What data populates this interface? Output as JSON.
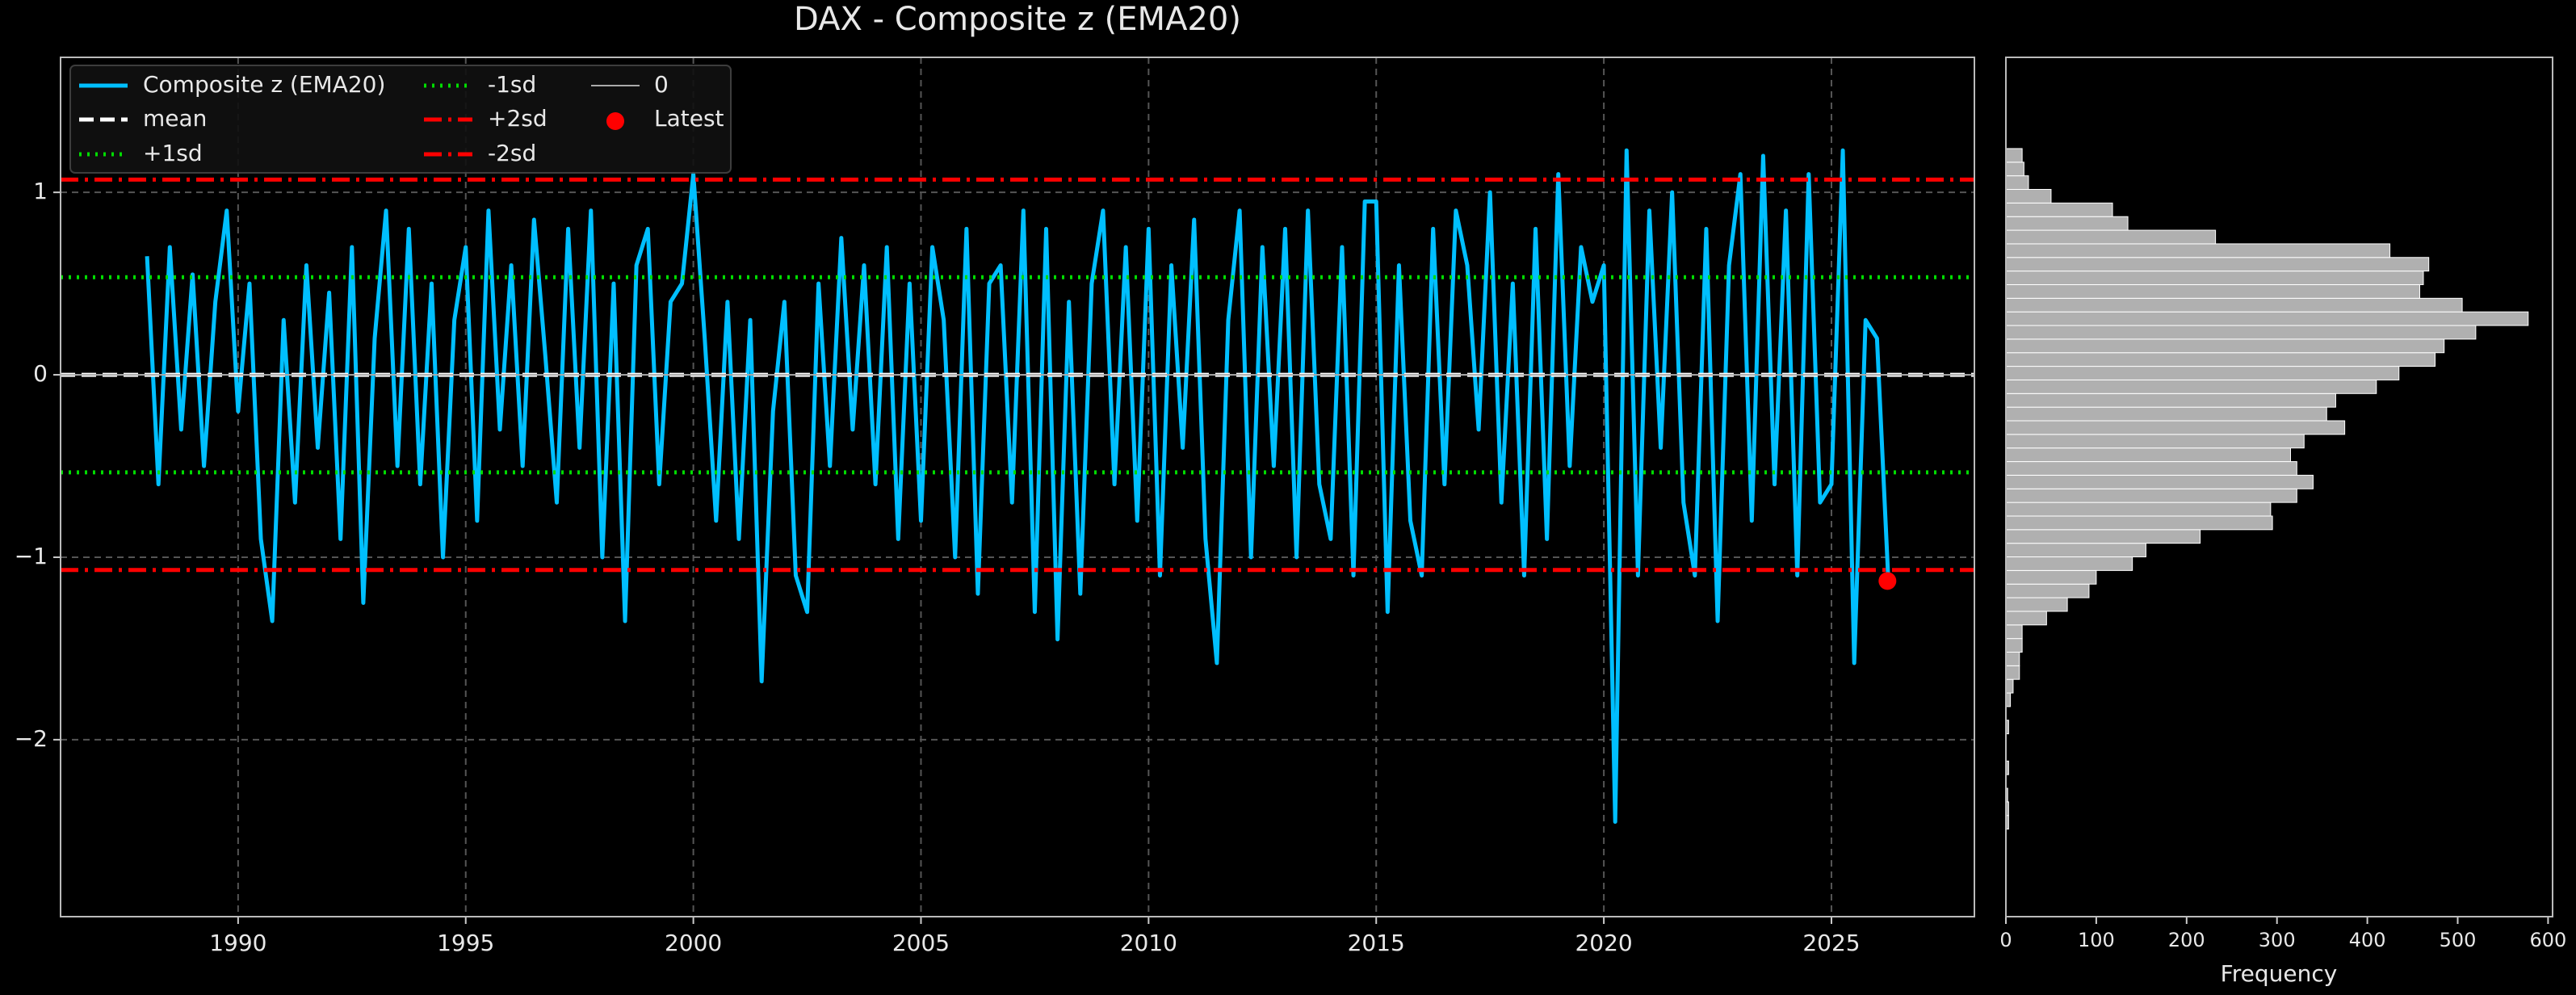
{
  "chart_data": [
    {
      "type": "line",
      "title": "DAX - Composite z (EMA20)",
      "xlim": [
        1986.1,
        2028.14
      ],
      "xticks": [
        1990,
        1995,
        2000,
        2005,
        2010,
        2015,
        2020,
        2025
      ],
      "ylim": [
        -2.97,
        1.74
      ],
      "yticks": [
        {
          "value": -2,
          "label": "−2"
        },
        {
          "value": -1,
          "label": "−1"
        },
        0,
        1
      ],
      "grid": true,
      "legend": "upper left",
      "series": [
        {
          "name": "Composite z (EMA20)",
          "color": "#00bfff",
          "x": [
            1988,
            1988.25,
            1988.5,
            1988.75,
            1989,
            1989.25,
            1989.5,
            1989.75,
            1990,
            1990.25,
            1990.5,
            1990.75,
            1991,
            1991.25,
            1991.5,
            1991.75,
            1992,
            1992.25,
            1992.5,
            1992.75,
            1993,
            1993.25,
            1993.5,
            1993.75,
            1994,
            1994.25,
            1994.5,
            1994.75,
            1995,
            1995.25,
            1995.5,
            1995.75,
            1996,
            1996.25,
            1996.5,
            1996.75,
            1997,
            1997.25,
            1997.5,
            1997.75,
            1998,
            1998.25,
            1998.5,
            1998.75,
            1999,
            1999.25,
            1999.5,
            1999.75,
            2000,
            2000.25,
            2000.5,
            2000.75,
            2001,
            2001.25,
            2001.5,
            2001.75,
            2002,
            2002.25,
            2002.5,
            2002.75,
            2003,
            2003.25,
            2003.5,
            2003.75,
            2004,
            2004.25,
            2004.5,
            2004.75,
            2005,
            2005.25,
            2005.5,
            2005.75,
            2006,
            2006.25,
            2006.5,
            2006.75,
            2007,
            2007.25,
            2007.5,
            2007.75,
            2008,
            2008.25,
            2008.5,
            2008.75,
            2009,
            2009.25,
            2009.5,
            2009.75,
            2010,
            2010.25,
            2010.5,
            2010.75,
            2011,
            2011.25,
            2011.5,
            2011.75,
            2012,
            2012.25,
            2012.5,
            2012.75,
            2013,
            2013.25,
            2013.5,
            2013.75,
            2014,
            2014.25,
            2014.5,
            2014.75,
            2015,
            2015.25,
            2015.5,
            2015.75,
            2016,
            2016.25,
            2016.5,
            2016.75,
            2017,
            2017.25,
            2017.5,
            2017.75,
            2018,
            2018.25,
            2018.5,
            2018.75,
            2019,
            2019.25,
            2019.5,
            2019.75,
            2020,
            2020.25,
            2020.5,
            2020.75,
            2021,
            2021.25,
            2021.5,
            2021.75,
            2022,
            2022.25,
            2022.5,
            2022.75,
            2023,
            2023.25,
            2023.5,
            2023.75,
            2024,
            2024.25,
            2024.5,
            2024.75,
            2025,
            2025.25,
            2025.5,
            2025.75,
            2026,
            2026.25
          ],
          "values": [
            0.65,
            -0.6,
            0.7,
            -0.3,
            0.55,
            -0.5,
            0.4,
            0.9,
            -0.2,
            0.5,
            -0.9,
            -1.35,
            0.3,
            -0.7,
            0.6,
            -0.4,
            0.45,
            -0.9,
            0.7,
            -1.25,
            0.2,
            0.9,
            -0.5,
            0.8,
            -0.6,
            0.5,
            -1.0,
            0.3,
            0.7,
            -0.8,
            0.9,
            -0.3,
            0.6,
            -0.5,
            0.85,
            0.1,
            -0.7,
            0.8,
            -0.4,
            0.9,
            -1.0,
            0.5,
            -1.35,
            0.6,
            0.8,
            -0.6,
            0.4,
            0.5,
            1.1,
            0.2,
            -0.8,
            0.4,
            -0.9,
            0.3,
            -1.68,
            -0.2,
            0.4,
            -1.1,
            -1.3,
            0.5,
            -0.5,
            0.75,
            -0.3,
            0.6,
            -0.6,
            0.7,
            -0.9,
            0.5,
            -0.8,
            0.7,
            0.3,
            -1.0,
            0.8,
            -1.2,
            0.5,
            0.6,
            -0.7,
            0.9,
            -1.3,
            0.8,
            -1.45,
            0.4,
            -1.2,
            0.5,
            0.9,
            -0.6,
            0.7,
            -0.8,
            0.8,
            -1.1,
            0.6,
            -0.4,
            0.85,
            -0.9,
            -1.58,
            0.3,
            0.9,
            -1.0,
            0.7,
            -0.5,
            0.8,
            -1.0,
            0.9,
            -0.6,
            -0.9,
            0.7,
            -1.1,
            0.95,
            0.95,
            -1.3,
            0.6,
            -0.8,
            -1.1,
            0.8,
            -0.6,
            0.9,
            0.6,
            -0.3,
            1.0,
            -0.7,
            0.5,
            -1.1,
            0.8,
            -0.9,
            1.1,
            -0.5,
            0.7,
            0.4,
            0.6,
            -2.45,
            1.23,
            -1.1,
            0.9,
            -0.4,
            1.0,
            -0.7,
            -1.1,
            0.8,
            -1.35,
            0.6,
            1.1,
            -0.8,
            1.2,
            -0.6,
            0.9,
            -1.1,
            1.1,
            -0.7,
            -0.6,
            1.23,
            -1.58,
            0.3,
            0.2,
            -1.13
          ]
        }
      ],
      "reference_lines": [
        {
          "name": "mean",
          "value": 0.0,
          "color": "#ffffff",
          "style": "dashed"
        },
        {
          "name": "+1sd",
          "value": 0.535,
          "color": "#00dd00",
          "style": "dotted"
        },
        {
          "name": "-1sd",
          "value": -0.535,
          "color": "#00dd00",
          "style": "dotted"
        },
        {
          "name": "+2sd",
          "value": 1.07,
          "color": "#ff0000",
          "style": "dashdot"
        },
        {
          "name": "-2sd",
          "value": -1.07,
          "color": "#ff0000",
          "style": "dashdot"
        },
        {
          "name": "0",
          "value": 0,
          "color": "#aaaaaa",
          "style": "solid"
        }
      ],
      "latest": {
        "name": "Latest",
        "x": 2026.23,
        "y": -1.13,
        "color": "#ff0000"
      }
    },
    {
      "type": "histogram",
      "orientation": "horizontal",
      "xlabel": "Frequency",
      "color": "#b0b0b0",
      "xlim": [
        0,
        605
      ],
      "xticks": [
        0,
        100,
        200,
        300,
        400,
        500,
        600
      ],
      "ylim": [
        -2.97,
        1.74
      ],
      "bins": [
        -2.49,
        -2.4154,
        -2.3408,
        -2.2662,
        -2.1916,
        -2.117,
        -2.0424,
        -1.9678,
        -1.8932,
        -1.8186,
        -1.744,
        -1.6694,
        -1.5948,
        -1.5202,
        -1.4456,
        -1.371,
        -1.2964,
        -1.2218,
        -1.1472,
        -1.0726,
        -0.998,
        -0.9234,
        -0.8488,
        -0.7742,
        -0.6996,
        -0.625,
        -0.5504,
        -0.4758,
        -0.4012,
        -0.3266,
        -0.252,
        -0.1774,
        -0.1028,
        -0.0282,
        0.0464,
        0.121,
        0.1956,
        0.2702,
        0.3448,
        0.4194,
        0.494,
        0.5686,
        0.6432,
        0.7178,
        0.7924,
        0.867,
        0.9416,
        1.0162,
        1.0908,
        1.1654,
        1.24
      ],
      "counts": [
        3,
        3,
        2,
        0,
        3,
        0,
        0,
        3,
        0,
        5,
        8,
        15,
        15,
        18,
        18,
        45,
        68,
        92,
        100,
        140,
        155,
        215,
        295,
        293,
        322,
        340,
        322,
        315,
        330,
        375,
        355,
        365,
        410,
        435,
        475,
        485,
        520,
        578,
        505,
        458,
        462,
        468,
        425,
        232,
        135,
        118,
        50,
        25,
        20,
        18
      ]
    }
  ]
}
